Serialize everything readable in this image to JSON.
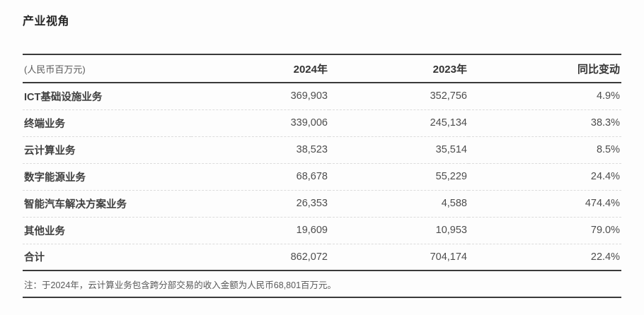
{
  "page": {
    "title": "产业视角"
  },
  "table": {
    "unit_label": "(人民币百万元)",
    "columns": [
      "2024年",
      "2023年",
      "同比变动"
    ],
    "rows": [
      {
        "label": "ICT基础设施业务",
        "y2024": "369,903",
        "y2023": "352,756",
        "yoy": "4.9%"
      },
      {
        "label": "终端业务",
        "y2024": "339,006",
        "y2023": "245,134",
        "yoy": "38.3%"
      },
      {
        "label": "云计算业务",
        "y2024": "38,523",
        "y2023": "35,514",
        "yoy": "8.5%"
      },
      {
        "label": "数字能源业务",
        "y2024": "68,678",
        "y2023": "55,229",
        "yoy": "24.4%"
      },
      {
        "label": "智能汽车解决方案业务",
        "y2024": "26,353",
        "y2023": "4,588",
        "yoy": "474.4%"
      },
      {
        "label": "其他业务",
        "y2024": "19,609",
        "y2023": "10,953",
        "yoy": "79.0%"
      }
    ],
    "total": {
      "label": "合计",
      "y2024": "862,072",
      "y2023": "704,174",
      "yoy": "22.4%"
    },
    "note": "注：于2024年，云计算业务包含跨分部交易的收入金额为人民币68,801百万元。"
  },
  "colors": {
    "rule_dark": "#3a3a3a",
    "rule_dashed": "#dcdcdc",
    "text_primary": "#333333",
    "text_secondary": "#595959"
  }
}
